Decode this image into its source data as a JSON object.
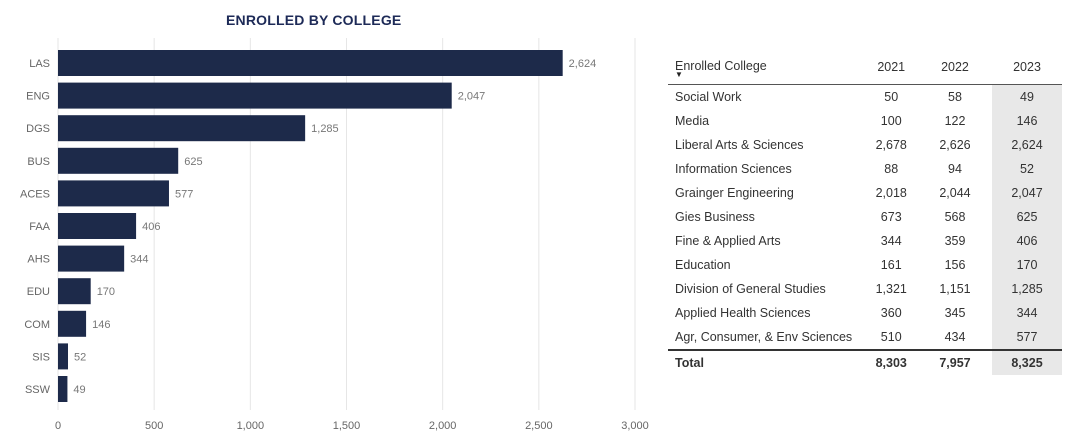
{
  "chart_data": {
    "type": "bar",
    "orientation": "horizontal",
    "title": "ENROLLED BY COLLEGE",
    "categories": [
      "LAS",
      "ENG",
      "DGS",
      "BUS",
      "ACES",
      "FAA",
      "AHS",
      "EDU",
      "COM",
      "SIS",
      "SSW"
    ],
    "values": [
      2624,
      2047,
      1285,
      625,
      577,
      406,
      344,
      170,
      146,
      52,
      49
    ],
    "value_labels": [
      "2,624",
      "2,047",
      "1,285",
      "625",
      "577",
      "406",
      "344",
      "170",
      "146",
      "52",
      "49"
    ],
    "xlim": [
      0,
      3000
    ],
    "x_ticks": [
      0,
      500,
      1000,
      1500,
      2000,
      2500,
      3000
    ],
    "x_tick_labels": [
      "0",
      "500",
      "1,000",
      "1,500",
      "2,000",
      "2,500",
      "3,000"
    ],
    "grid": "vertical",
    "bar_color": "#1d2a4a"
  },
  "table": {
    "headers": [
      "Enrolled College",
      "2021",
      "2022",
      "2023"
    ],
    "sort_indicator": "▼",
    "highlight_color": "#e8e8e8",
    "rows": [
      {
        "name": "Social Work",
        "y2021": "50",
        "y2022": "58",
        "y2023": "49"
      },
      {
        "name": "Media",
        "y2021": "100",
        "y2022": "122",
        "y2023": "146"
      },
      {
        "name": "Liberal Arts & Sciences",
        "y2021": "2,678",
        "y2022": "2,626",
        "y2023": "2,624"
      },
      {
        "name": "Information Sciences",
        "y2021": "88",
        "y2022": "94",
        "y2023": "52"
      },
      {
        "name": "Grainger Engineering",
        "y2021": "2,018",
        "y2022": "2,044",
        "y2023": "2,047"
      },
      {
        "name": "Gies Business",
        "y2021": "673",
        "y2022": "568",
        "y2023": "625"
      },
      {
        "name": "Fine & Applied Arts",
        "y2021": "344",
        "y2022": "359",
        "y2023": "406"
      },
      {
        "name": "Education",
        "y2021": "161",
        "y2022": "156",
        "y2023": "170"
      },
      {
        "name": "Division of General Studies",
        "y2021": "1,321",
        "y2022": "1,151",
        "y2023": "1,285"
      },
      {
        "name": "Applied Health Sciences",
        "y2021": "360",
        "y2022": "345",
        "y2023": "344"
      },
      {
        "name": "Agr, Consumer, & Env Sciences",
        "y2021": "510",
        "y2022": "434",
        "y2023": "577"
      }
    ],
    "total": {
      "name": "Total",
      "y2021": "8,303",
      "y2022": "7,957",
      "y2023": "8,325"
    }
  }
}
